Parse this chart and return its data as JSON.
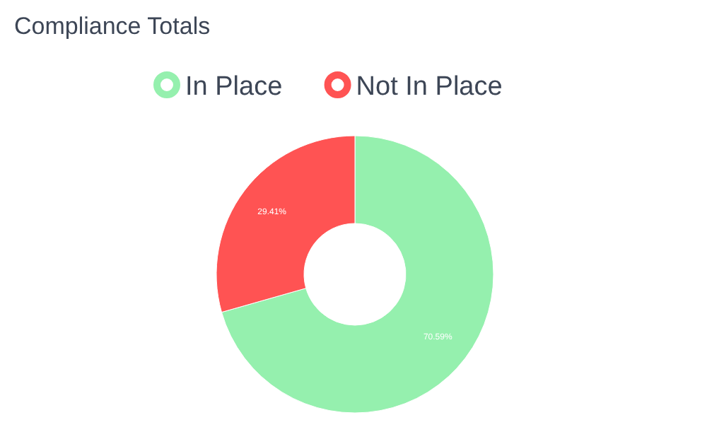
{
  "chart_data": {
    "type": "donut",
    "title": "Compliance Totals",
    "categories": [
      "In Place",
      "Not In Place"
    ],
    "values": [
      70.59,
      29.41
    ],
    "value_labels": [
      "70.59%",
      "29.41%"
    ],
    "colors": [
      "#95f0ae",
      "#ff5353"
    ],
    "legend": "top"
  }
}
